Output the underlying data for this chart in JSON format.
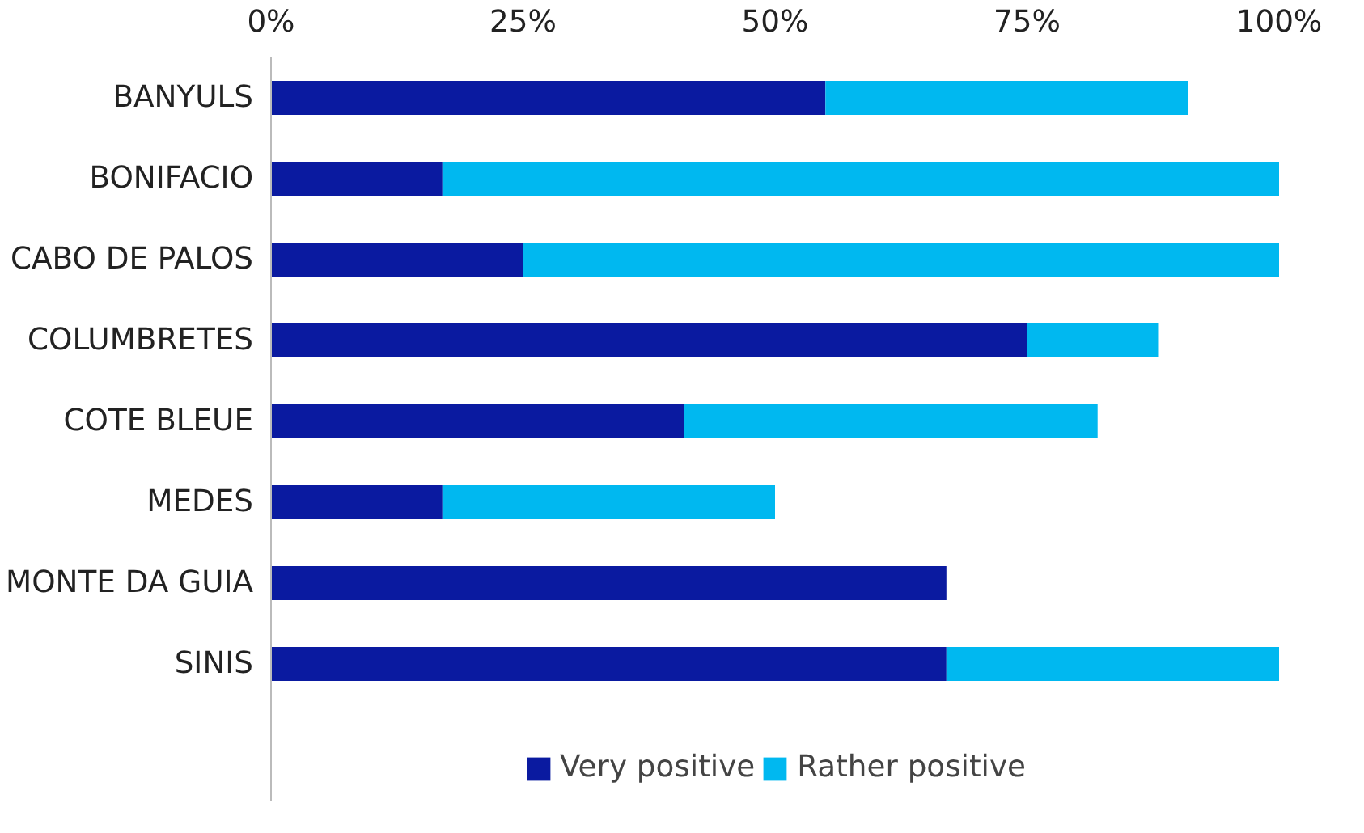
{
  "chart_data": {
    "type": "bar",
    "orientation": "horizontal",
    "stacked": true,
    "categories": [
      "BANYULS",
      "BONIFACIO",
      "CABO DE PALOS",
      "COLUMBRETES",
      "COTE BLEUE",
      "MEDES",
      "MONTE DA GUIA",
      "SINIS"
    ],
    "series": [
      {
        "name": "Very positive",
        "color": "#0a1aa0",
        "values": [
          55,
          17,
          25,
          75,
          41,
          17,
          67,
          67
        ]
      },
      {
        "name": "Rather positive",
        "color": "#00b8f0",
        "values": [
          36,
          83,
          75,
          13,
          41,
          33,
          0,
          33
        ]
      }
    ],
    "xlim": [
      0,
      100
    ],
    "xticks": [
      {
        "value": 0,
        "label": "0%"
      },
      {
        "value": 25,
        "label": "25%"
      },
      {
        "value": 50,
        "label": "50%"
      },
      {
        "value": 75,
        "label": "75%"
      },
      {
        "value": 100,
        "label": "100%"
      }
    ],
    "grid": false,
    "legend": "bottom"
  }
}
